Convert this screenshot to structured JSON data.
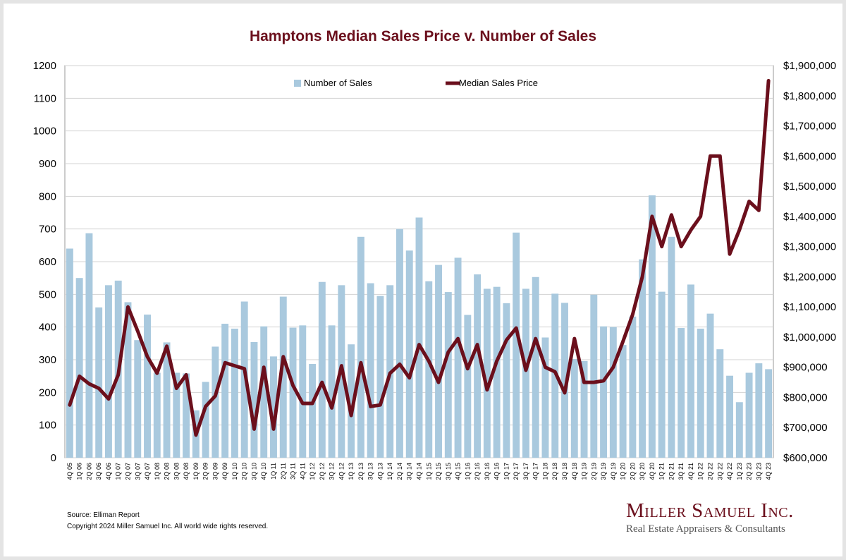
{
  "chart_data": {
    "type": "bar+line",
    "title": "Hamptons Median Sales Price v. Number of Sales",
    "categories": [
      "4Q 05",
      "1Q 06",
      "2Q 06",
      "3Q 06",
      "4Q 06",
      "1Q 07",
      "2Q 07",
      "3Q 07",
      "4Q 07",
      "1Q 08",
      "2Q 08",
      "3Q 08",
      "4Q 08",
      "1Q 09",
      "2Q 09",
      "3Q 09",
      "4Q 09",
      "1Q 10",
      "2Q 10",
      "3Q 10",
      "4Q 10",
      "1Q 11",
      "2Q 11",
      "3Q 11",
      "4Q 11",
      "1Q 12",
      "2Q 12",
      "3Q 12",
      "4Q 12",
      "1Q 13",
      "2Q 13",
      "3Q 13",
      "4Q 13",
      "1Q 14",
      "2Q 14",
      "3Q 14",
      "4Q 14",
      "1Q 15",
      "2Q 15",
      "3Q 15",
      "4Q 15",
      "1Q 16",
      "2Q 16",
      "3Q 16",
      "4Q 16",
      "1Q 17",
      "2Q 17",
      "3Q 17",
      "4Q 17",
      "1Q 18",
      "2Q 18",
      "3Q 18",
      "4Q 18",
      "1Q 19",
      "2Q 19",
      "3Q 19",
      "4Q 19",
      "1Q 20",
      "2Q 20",
      "3Q 20",
      "4Q 20",
      "1Q 21",
      "2Q 21",
      "3Q 21",
      "4Q 21",
      "1Q 22",
      "2Q 22",
      "3Q 22",
      "4Q 22",
      "1Q 23",
      "2Q 23",
      "3Q 23",
      "4Q 23"
    ],
    "series": [
      {
        "name": "Number of Sales",
        "type": "bar",
        "axis": "left",
        "color": "#a9c9de",
        "values": [
          640,
          550,
          687,
          460,
          528,
          542,
          476,
          360,
          438,
          260,
          353,
          260,
          258,
          145,
          232,
          340,
          410,
          395,
          478,
          354,
          402,
          310,
          493,
          398,
          405,
          287,
          538,
          405,
          528,
          347,
          676,
          534,
          495,
          528,
          700,
          634,
          735,
          540,
          590,
          507,
          612,
          437,
          561,
          517,
          523,
          473,
          689,
          517,
          553,
          368,
          502,
          474,
          302,
          296,
          499,
          402,
          400,
          345,
          432,
          607,
          803,
          508,
          676,
          397,
          530,
          395,
          441,
          332,
          251,
          170,
          260,
          289,
          271
        ]
      },
      {
        "name": "Median Sales Price",
        "type": "line",
        "axis": "right",
        "color": "#6b0f1c",
        "values": [
          775000,
          870000,
          845000,
          830000,
          795000,
          875000,
          1100000,
          1020000,
          935000,
          880000,
          970000,
          830000,
          875000,
          675000,
          770000,
          805000,
          915000,
          905000,
          895000,
          695000,
          900000,
          695000,
          935000,
          840000,
          780000,
          780000,
          850000,
          765000,
          905000,
          740000,
          915000,
          770000,
          775000,
          880000,
          910000,
          865000,
          975000,
          920000,
          850000,
          950000,
          995000,
          895000,
          975000,
          825000,
          920000,
          990000,
          1030000,
          890000,
          995000,
          900000,
          885000,
          815000,
          995000,
          850000,
          850000,
          855000,
          900000,
          985000,
          1075000,
          1200000,
          1400000,
          1300000,
          1405000,
          1300000,
          1355000,
          1400000,
          1600000,
          1600000,
          1275000,
          1355000,
          1450000,
          1420000,
          1850000
        ]
      }
    ],
    "y_left": {
      "min": 0,
      "max": 1200,
      "step": 100,
      "ticks": [
        "0",
        "100",
        "200",
        "300",
        "400",
        "500",
        "600",
        "700",
        "800",
        "900",
        "1000",
        "1100",
        "1200"
      ]
    },
    "y_right": {
      "min": 600000,
      "max": 1900000,
      "step": 100000,
      "ticks": [
        "$600,000",
        "$700,000",
        "$800,000",
        "$900,000",
        "$1,000,000",
        "$1,100,000",
        "$1,200,000",
        "$1,300,000",
        "$1,400,000",
        "$1,500,000",
        "$1,600,000",
        "$1,700,000",
        "$1,800,000",
        "$1,900,000"
      ]
    },
    "legend": [
      "Number of Sales",
      "Median Sales Price"
    ],
    "legend_position": "top-center",
    "grid": true
  },
  "footer": {
    "source": "Source: Elliman Report",
    "copyright": "Copyright 2024 Miller Samuel Inc.  All world wide rights reserved."
  },
  "logo": {
    "name": "Miller Samuel Inc.",
    "tagline": "Real Estate Appraisers & Consultants"
  }
}
